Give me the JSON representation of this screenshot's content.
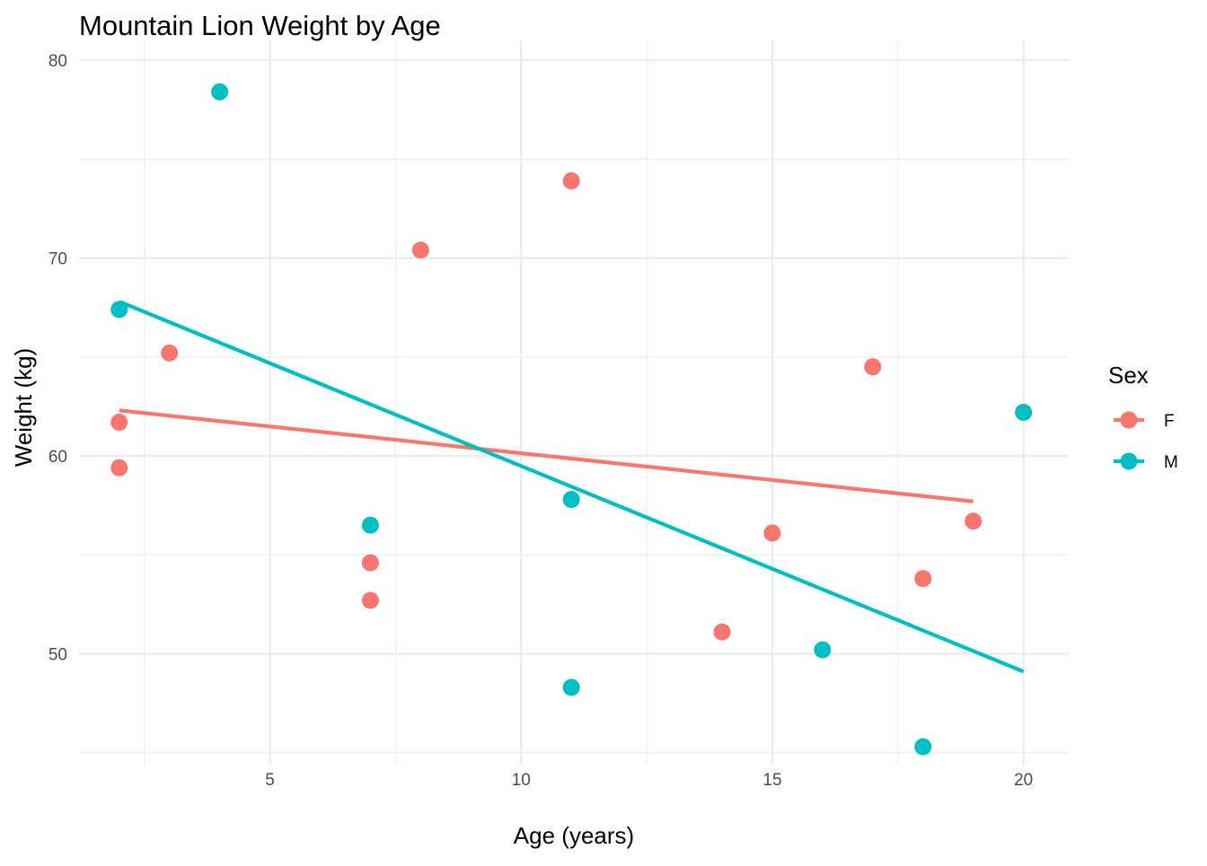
{
  "chart_data": {
    "type": "scatter",
    "title": "Mountain Lion Weight by Age",
    "xlabel": "Age (years)",
    "ylabel": "Weight (kg)",
    "xlim": [
      1.2,
      20.9
    ],
    "ylim": [
      44.4,
      81.0
    ],
    "x_ticks": [
      5,
      10,
      15,
      20
    ],
    "x_minor_ticks": [
      2.5,
      7.5,
      12.5,
      17.5
    ],
    "y_ticks": [
      50,
      60,
      70,
      80
    ],
    "y_minor_ticks": [
      45,
      55,
      65,
      75
    ],
    "grid": true,
    "legend": {
      "title": "Sex",
      "position": "right"
    },
    "series": [
      {
        "name": "F",
        "color": "#F8766D",
        "points": [
          {
            "x": 2,
            "y": 61.7
          },
          {
            "x": 2,
            "y": 59.4
          },
          {
            "x": 3,
            "y": 65.2
          },
          {
            "x": 7,
            "y": 54.6
          },
          {
            "x": 7,
            "y": 52.7
          },
          {
            "x": 8,
            "y": 70.4
          },
          {
            "x": 11,
            "y": 73.9
          },
          {
            "x": 14,
            "y": 51.1
          },
          {
            "x": 15,
            "y": 56.1
          },
          {
            "x": 17,
            "y": 64.5
          },
          {
            "x": 18,
            "y": 53.8
          },
          {
            "x": 19,
            "y": 56.7
          }
        ],
        "trend": {
          "x_start": 2,
          "y_start": 62.3,
          "x_end": 19,
          "y_end": 57.7
        }
      },
      {
        "name": "M",
        "color": "#00BFC4",
        "points": [
          {
            "x": 2,
            "y": 67.4
          },
          {
            "x": 4,
            "y": 78.4
          },
          {
            "x": 7,
            "y": 56.5
          },
          {
            "x": 11,
            "y": 57.8
          },
          {
            "x": 11,
            "y": 48.3
          },
          {
            "x": 16,
            "y": 50.2
          },
          {
            "x": 18,
            "y": 45.3
          },
          {
            "x": 20,
            "y": 62.2
          }
        ],
        "trend": {
          "x_start": 2,
          "y_start": 67.8,
          "x_end": 20,
          "y_end": 49.1
        }
      }
    ]
  }
}
